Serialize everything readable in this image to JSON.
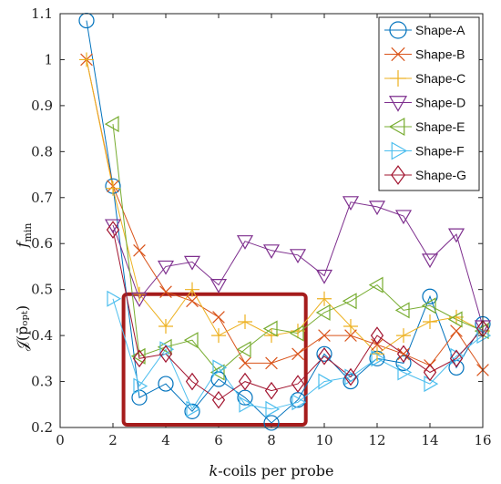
{
  "chart_data": {
    "type": "line",
    "xlabel_italic": "k",
    "xlabel_rest": "-coils per probe",
    "ylabel_math": "𝒥(p̄ₒₚₜ)",
    "ylabel_fmin": "f",
    "ylabel_fmin_sub": "min",
    "xlim": [
      0,
      16
    ],
    "ylim": [
      0.2,
      1.1
    ],
    "xticks": [
      "0",
      "2",
      "4",
      "6",
      "8",
      "10",
      "12",
      "14",
      "16"
    ],
    "yticks": [
      "0.2",
      "0.3",
      "0.4",
      "0.5",
      "0.6",
      "0.7",
      "0.8",
      "0.9",
      "1",
      "1.1"
    ],
    "x": [
      1,
      2,
      3,
      4,
      5,
      6,
      7,
      8,
      9,
      10,
      11,
      12,
      13,
      14,
      15,
      16
    ],
    "legend_position": "top-right",
    "highlight_box": {
      "x": [
        2.4,
        9.3
      ],
      "y": [
        0.2,
        0.49
      ],
      "color": "#a51c1c"
    },
    "series": [
      {
        "name": "Shape-A",
        "marker": "circle",
        "color": "#0072bd",
        "values": [
          1.085,
          0.725,
          0.265,
          0.295,
          0.235,
          0.305,
          0.265,
          0.21,
          0.26,
          0.36,
          0.3,
          0.35,
          0.34,
          0.485,
          0.33,
          0.425
        ]
      },
      {
        "name": "Shape-B",
        "marker": "x",
        "color": "#d95319",
        "values": [
          1.0,
          0.725,
          0.585,
          0.495,
          0.475,
          0.44,
          0.34,
          0.34,
          0.36,
          0.4,
          0.4,
          0.38,
          0.36,
          0.335,
          0.41,
          0.325
        ]
      },
      {
        "name": "Shape-C",
        "marker": "plus",
        "color": "#edb120",
        "values": [
          1.0,
          0.72,
          0.49,
          0.42,
          0.5,
          0.4,
          0.43,
          0.4,
          0.41,
          0.48,
          0.42,
          0.36,
          0.4,
          0.43,
          0.44,
          0.41
        ]
      },
      {
        "name": "Shape-D",
        "marker": "tri-down",
        "color": "#7e2f8e",
        "values": [
          null,
          0.64,
          0.48,
          0.55,
          0.56,
          0.51,
          0.605,
          0.585,
          0.575,
          0.53,
          0.69,
          0.68,
          0.66,
          0.565,
          0.62,
          0.42
        ]
      },
      {
        "name": "Shape-E",
        "marker": "tri-left",
        "color": "#77ac30",
        "values": [
          null,
          0.86,
          0.355,
          0.375,
          0.39,
          0.32,
          0.37,
          0.415,
          0.405,
          0.45,
          0.475,
          0.51,
          0.455,
          0.465,
          0.435,
          0.41
        ]
      },
      {
        "name": "Shape-F",
        "marker": "tri-right",
        "color": "#4dbeee",
        "values": [
          null,
          0.48,
          0.29,
          0.37,
          0.24,
          0.33,
          0.25,
          0.24,
          0.255,
          0.3,
          0.31,
          0.35,
          0.32,
          0.295,
          0.355,
          0.4
        ]
      },
      {
        "name": "Shape-G",
        "marker": "diamond",
        "color": "#a2142f",
        "values": [
          null,
          0.63,
          0.35,
          0.36,
          0.3,
          0.26,
          0.3,
          0.28,
          0.295,
          0.355,
          0.31,
          0.4,
          0.36,
          0.32,
          0.35,
          0.415
        ]
      }
    ]
  }
}
